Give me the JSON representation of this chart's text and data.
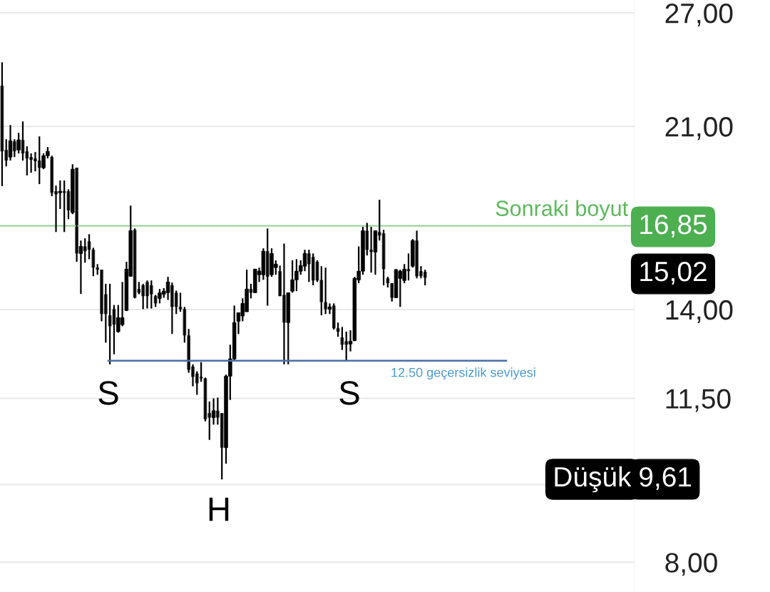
{
  "chart_data": {
    "type": "candlestick",
    "categories": [
      null,
      null,
      null,
      null,
      null,
      null,
      null,
      null,
      null,
      null,
      null,
      null,
      null,
      null,
      null,
      null,
      null,
      null,
      null,
      null,
      null,
      null,
      null,
      null,
      null,
      null,
      null,
      null,
      null,
      null,
      null,
      null,
      null,
      null,
      null,
      null,
      null,
      null,
      null,
      null,
      null,
      null,
      null,
      null,
      null,
      null,
      null,
      null,
      null,
      null,
      null,
      null,
      null,
      null,
      null,
      null,
      null,
      null,
      null,
      null,
      null,
      null,
      null,
      null,
      null,
      null,
      null,
      null,
      null,
      null,
      null,
      null,
      null,
      null,
      null,
      null,
      null,
      null,
      null,
      null,
      null,
      null,
      null,
      null,
      null,
      null,
      null,
      null,
      null,
      null,
      null,
      null,
      null,
      null,
      null,
      null,
      null,
      null,
      null,
      null,
      null,
      null,
      null,
      null,
      null,
      null,
      null,
      null,
      null,
      null,
      null,
      null,
      null,
      null,
      null,
      null,
      null,
      null,
      null,
      null,
      null,
      null,
      null,
      null,
      null,
      null,
      null,
      null,
      null,
      null,
      null,
      null,
      null,
      null,
      null,
      null,
      null,
      null,
      null,
      null,
      null,
      null,
      null,
      null,
      null,
      null,
      null,
      null,
      null,
      null,
      null,
      null,
      null
    ],
    "ohlc": [
      [
        22.98,
        24.2,
        18.4,
        19.87
      ],
      [
        19.93,
        20.41,
        19.22,
        19.47
      ],
      [
        19.62,
        21.06,
        19.47,
        20.34
      ],
      [
        20.31,
        20.41,
        19.62,
        19.87
      ],
      [
        19.93,
        20.7,
        19.78,
        20.38
      ],
      [
        20.38,
        21.23,
        19.47,
        19.78
      ],
      [
        19.87,
        20.09,
        18.84,
        19.56
      ],
      [
        19.62,
        19.78,
        18.95,
        19.5
      ],
      [
        19.56,
        19.84,
        19.01,
        19.44
      ],
      [
        19.47,
        20.54,
        18.48,
        19.16
      ],
      [
        19.16,
        19.78,
        19.1,
        19.68
      ],
      [
        19.68,
        20.06,
        19.56,
        19.87
      ],
      [
        19.62,
        19.68,
        17.99,
        18.13
      ],
      [
        18.19,
        18.42,
        16.62,
        18.07
      ],
      [
        18.13,
        18.63,
        17.49,
        18.19
      ],
      [
        18.19,
        18.63,
        16.62,
        18.13
      ],
      [
        18.19,
        18.27,
        17.1,
        17.43
      ],
      [
        17.35,
        19.31,
        17.29,
        19.1
      ],
      [
        19.16,
        19.16,
        15.56,
        15.85
      ],
      [
        15.85,
        16.31,
        14.49,
        16.1
      ],
      [
        16.1,
        16.39,
        15.53,
        15.93
      ],
      [
        16.28,
        16.54,
        15.65,
        15.98
      ],
      [
        15.98,
        16.05,
        15.07,
        15.36
      ],
      [
        15.36,
        15.48,
        15.12,
        15.29
      ],
      [
        15.29,
        15.29,
        13.64,
        13.86
      ],
      [
        14.48,
        14.82,
        13.01,
        13.86
      ],
      [
        13.82,
        14.82,
        12.4,
        13.49
      ],
      [
        14.01,
        14.14,
        12.68,
        13.54
      ],
      [
        13.33,
        14.14,
        13.3,
        13.75
      ],
      [
        13.54,
        14.88,
        13.49,
        13.75
      ],
      [
        13.97,
        15.56,
        13.95,
        15.31
      ],
      [
        15.07,
        17.62,
        15.05,
        16.67
      ],
      [
        16.7,
        16.75,
        14.35,
        14.37
      ],
      [
        14.65,
        14.88,
        14.48,
        14.53
      ],
      [
        14.77,
        14.82,
        14.01,
        14.42
      ],
      [
        14.88,
        14.93,
        14.03,
        14.42
      ],
      [
        14.77,
        14.93,
        14.03,
        14.48
      ],
      [
        14.42,
        14.46,
        14.08,
        14.19
      ],
      [
        14.35,
        14.65,
        14.19,
        14.53
      ],
      [
        14.48,
        14.68,
        14.37,
        14.58
      ],
      [
        14.53,
        15.05,
        14.3,
        14.88
      ],
      [
        14.77,
        14.86,
        13.26,
        14.08
      ],
      [
        14.53,
        14.6,
        13.86,
        14.08
      ],
      [
        14.08,
        14.53,
        13.93,
        14.01
      ],
      [
        14.01,
        14.08,
        13.01,
        13.22
      ],
      [
        13.22,
        13.41,
        12.17,
        12.25
      ],
      [
        12.34,
        12.4,
        11.81,
        12.06
      ],
      [
        12.15,
        12.21,
        11.59,
        11.89
      ],
      [
        12.06,
        12.46,
        11.93,
        12.02
      ],
      [
        12.02,
        12.04,
        10.93,
        10.98
      ],
      [
        11.13,
        11.42,
        10.49,
        11.02
      ],
      [
        11.02,
        11.5,
        10.85,
        11.19
      ],
      [
        11.19,
        11.52,
        10.85,
        11.02
      ],
      [
        11.13,
        11.13,
        9.61,
        10.31
      ],
      [
        10.31,
        12.12,
        9.95,
        12.08
      ],
      [
        12.08,
        12.95,
        11.46,
        12.55
      ],
      [
        12.55,
        14.12,
        12.51,
        13.6
      ],
      [
        13.64,
        13.9,
        13.26,
        13.9
      ],
      [
        13.8,
        14.35,
        13.64,
        14.19
      ],
      [
        13.93,
        15.29,
        13.93,
        14.65
      ],
      [
        14.65,
        14.82,
        14.35,
        14.53
      ],
      [
        14.53,
        15.31,
        14.53,
        15.31
      ],
      [
        15.12,
        15.36,
        14.88,
        15.24
      ],
      [
        15.12,
        16.03,
        14.95,
        15.93
      ],
      [
        15.93,
        16.75,
        14.12,
        15.05
      ],
      [
        15.12,
        16.03,
        15.05,
        15.85
      ],
      [
        15.36,
        15.61,
        15.12,
        15.48
      ],
      [
        15.24,
        15.43,
        14.42,
        14.42
      ],
      [
        14.46,
        16.2,
        12.4,
        13.6
      ],
      [
        13.6,
        14.53,
        12.4,
        14.53
      ],
      [
        14.58,
        15.61,
        14.53,
        14.95
      ],
      [
        14.95,
        15.65,
        14.58,
        15.24
      ],
      [
        15.24,
        15.61,
        15.12,
        15.43
      ],
      [
        15.41,
        15.98,
        15.24,
        15.85
      ],
      [
        15.85,
        15.98,
        14.88,
        15.48
      ],
      [
        15.73,
        15.85,
        14.77,
        14.93
      ],
      [
        15.56,
        15.61,
        14.88,
        14.93
      ],
      [
        14.95,
        15.41,
        13.82,
        14.23
      ],
      [
        14.23,
        15.36,
        13.86,
        14.01
      ],
      [
        14.01,
        14.19,
        13.86,
        14.08
      ],
      [
        14.12,
        14.19,
        13.39,
        13.43
      ],
      [
        13.43,
        13.6,
        13.18,
        13.33
      ],
      [
        13.16,
        13.47,
        12.8,
        12.95
      ],
      [
        13.05,
        13.33,
        12.51,
        12.95
      ],
      [
        12.97,
        13.37,
        12.76,
        13.05
      ],
      [
        13.07,
        15.05,
        13.05,
        15.0
      ],
      [
        14.95,
        16.1,
        14.84,
        15.24
      ],
      [
        15.24,
        16.81,
        15.12,
        16.67
      ],
      [
        16.67,
        16.96,
        15.78,
        15.98
      ],
      [
        15.98,
        16.81,
        15.19,
        15.9
      ],
      [
        15.9,
        16.67,
        15.12,
        16.67
      ],
      [
        16.62,
        17.85,
        16.31,
        16.49
      ],
      [
        16.57,
        16.7,
        14.77,
        15.31
      ],
      [
        15.0,
        15.05,
        14.7,
        14.84
      ],
      [
        14.84,
        14.84,
        14.25,
        14.37
      ],
      [
        14.37,
        15.31,
        14.37,
        15.29
      ],
      [
        15.0,
        15.29,
        14.08,
        15.24
      ],
      [
        14.93,
        15.48,
        14.84,
        15.31
      ],
      [
        15.31,
        15.85,
        14.93,
        15.24
      ],
      [
        15.41,
        16.36,
        15.36,
        16.31
      ],
      [
        16.31,
        16.67,
        15.0,
        15.07
      ],
      [
        15.24,
        15.41,
        15.0,
        15.07
      ],
      [
        15.22,
        15.29,
        14.77,
        15.02
      ],
      null,
      null,
      null,
      null,
      null,
      null,
      null,
      null,
      null,
      null,
      null,
      null,
      null,
      null,
      null,
      null,
      null,
      null,
      null,
      null,
      null,
      null,
      null,
      null,
      null,
      null,
      null,
      null,
      null,
      null,
      null,
      null,
      null,
      null,
      null,
      null,
      null,
      null,
      null,
      null,
      null,
      null,
      null,
      null,
      null,
      null,
      null,
      null,
      null,
      null
    ],
    "color": "#000000",
    "log": true,
    "ylim": [
      7.49,
      27.78
    ],
    "yticks": [
      {
        "value": 8,
        "label": "8,00"
      },
      {
        "value": 9.5,
        "label": null
      },
      {
        "value": 11.5,
        "label": "11,50"
      },
      {
        "value": 14,
        "label": "14,00"
      },
      {
        "value": 21,
        "label": "21,00"
      },
      {
        "value": 27,
        "label": "27,00"
      }
    ],
    "grid": "y",
    "tick_labels": "y",
    "ref_lines": [
      {
        "axis": "y",
        "value": 16.85,
        "label": "Sonraki boyut",
        "color": "#9fd49f"
      },
      {
        "axis": "y",
        "value": 12.5,
        "label": "12.50 geçersizlik seviyesi",
        "color": "#4a6fa8"
      }
    ],
    "annotations": [
      "S",
      "H",
      "S",
      "16,85",
      "15,02",
      "Düşük",
      "9,61"
    ]
  }
}
